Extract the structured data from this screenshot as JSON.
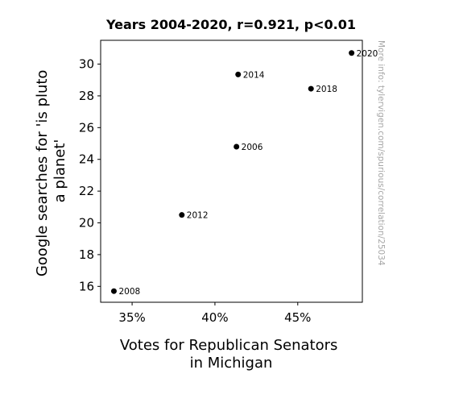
{
  "chart_data": {
    "type": "scatter",
    "title": "Years 2004-2020, r=0.921, p<0.01",
    "xlabel_lines": [
      "Votes for Republican Senators",
      "in Michigan"
    ],
    "ylabel_lines": [
      "Google searches for 'is pluto",
      "a planet'"
    ],
    "x_unit": "%",
    "xlim": [
      33.1,
      48.9
    ],
    "ylim": [
      15.0,
      31.5
    ],
    "xticks": [
      35,
      40,
      45
    ],
    "yticks": [
      16,
      18,
      20,
      22,
      24,
      26,
      28,
      30
    ],
    "grid": false,
    "marker_color": "#000000",
    "points": [
      {
        "label": "2006",
        "x": 41.3,
        "y": 24.8
      },
      {
        "label": "2008",
        "x": 33.9,
        "y": 15.7
      },
      {
        "label": "2012",
        "x": 38.0,
        "y": 20.5
      },
      {
        "label": "2014",
        "x": 41.4,
        "y": 29.35
      },
      {
        "label": "2018",
        "x": 45.8,
        "y": 28.45
      },
      {
        "label": "2020",
        "x": 48.25,
        "y": 30.7
      }
    ]
  },
  "watermark": "More info: tylervigen.com/spurious/correlation/25034"
}
